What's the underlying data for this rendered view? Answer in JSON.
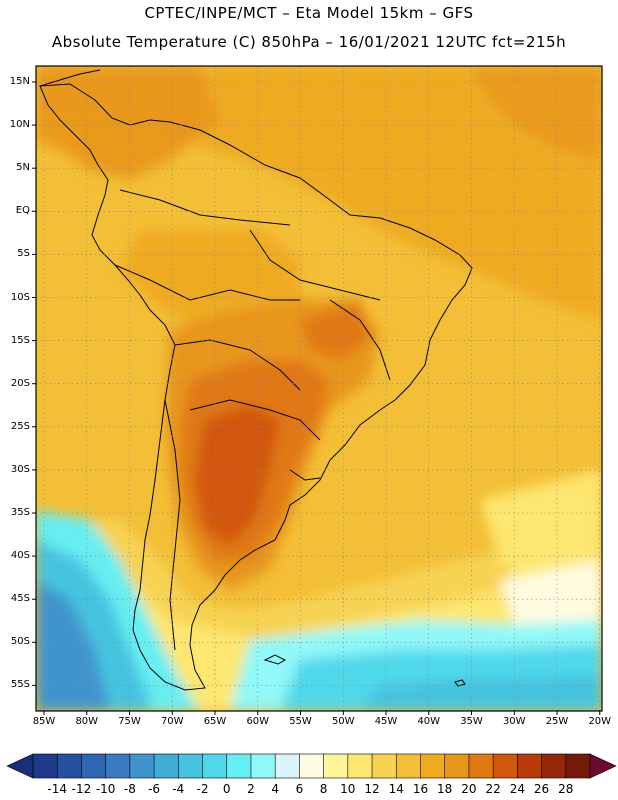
{
  "title_line1": "CPTEC/INPE/MCT –  Eta Model 15km – GFS",
  "title_line2": "Absolute Temperature (C) 850hPa – 16/01/2021 12UTC fct=215h",
  "lat_labels": [
    "15N",
    "10N",
    "5N",
    "EQ",
    "5S",
    "10S",
    "15S",
    "20S",
    "25S",
    "30S",
    "35S",
    "40S",
    "45S",
    "50S",
    "55S"
  ],
  "lon_labels": [
    "85W",
    "80W",
    "75W",
    "70W",
    "65W",
    "60W",
    "55W",
    "50W",
    "45W",
    "40W",
    "35W",
    "30W",
    "25W",
    "20W"
  ],
  "colorbar": {
    "labels": [
      "-14",
      "-12",
      "-10",
      "-8",
      "-6",
      "-4",
      "-2",
      "0",
      "2",
      "4",
      "6",
      "8",
      "10",
      "12",
      "14",
      "16",
      "18",
      "20",
      "22",
      "24",
      "26",
      "28"
    ],
    "colors": [
      "#1f3a8a",
      "#2650a0",
      "#2f66b3",
      "#3a7cc2",
      "#3f94cc",
      "#40acd6",
      "#44c4e0",
      "#4fd8ea",
      "#66eef2",
      "#90f8f8",
      "#d8f6fb",
      "#fffbe0",
      "#fff59a",
      "#fde770",
      "#f7d352",
      "#f3bf36",
      "#eeab20",
      "#e8961a",
      "#e07812",
      "#d2560c",
      "#b83a08",
      "#962608",
      "#741a08"
    ]
  },
  "colors": {
    "frame": "#000000",
    "grid": "#888888",
    "map_base": "#f3bf36"
  }
}
